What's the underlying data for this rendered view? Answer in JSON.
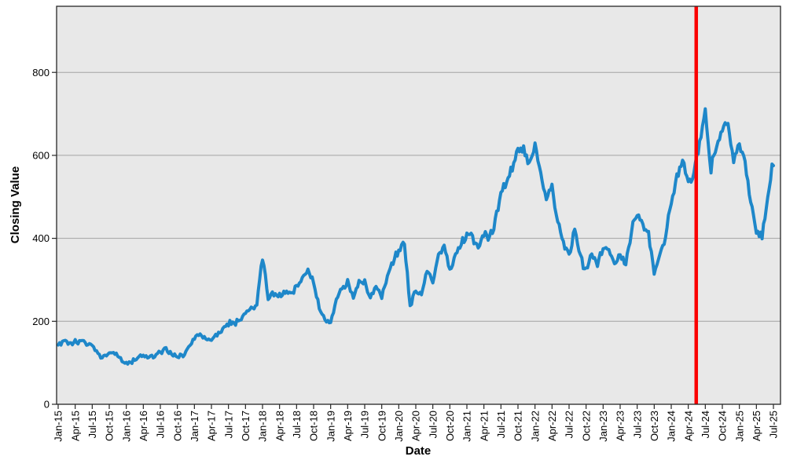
{
  "chart_data": {
    "type": "line",
    "title": "",
    "xlabel": "Date",
    "ylabel": "Closing Value",
    "x_start_label": "Jan-15",
    "x_end_label": "Jul-25",
    "x_tick_labels": [
      "Jan-15",
      "Apr-15",
      "Jul-15",
      "Oct-15",
      "Jan-16",
      "Apr-16",
      "Jul-16",
      "Oct-16",
      "Jan-17",
      "Apr-17",
      "Jul-17",
      "Oct-17",
      "Jan-18",
      "Apr-18",
      "Jul-18",
      "Oct-18",
      "Jan-19",
      "Apr-19",
      "Jul-19",
      "Oct-19",
      "Jan-20",
      "Apr-20",
      "Jul-20",
      "Oct-20",
      "Jan-21",
      "Apr-21",
      "Jul-21",
      "Oct-21",
      "Jan-22",
      "Apr-22",
      "Jul-22",
      "Oct-22",
      "Jan-23",
      "Apr-23",
      "Jul-23",
      "Oct-23",
      "Jan-24",
      "Apr-24",
      "Jul-24",
      "Oct-24",
      "Jan-25",
      "Apr-25",
      "Jul-25"
    ],
    "y_tick_labels": [
      "0",
      "200",
      "400",
      "600",
      "800"
    ],
    "y_tick_values": [
      0,
      200,
      400,
      600,
      800
    ],
    "ylim": [
      0,
      959
    ],
    "grid": "horizontal-only",
    "legend": "none",
    "series": [
      {
        "name": "Closing Value",
        "x_unit": "month index from Jan-2015 (0 = Jan-15 ... 126 = Jul-25), values estimated from daily trace",
        "monthly_values": [
          145,
          150,
          147,
          150,
          149,
          146,
          144,
          118,
          113,
          125,
          122,
          108,
          100,
          103,
          112,
          118,
          115,
          118,
          126,
          132,
          121,
          112,
          119,
          137,
          160,
          168,
          157,
          155,
          170,
          180,
          196,
          195,
          205,
          218,
          228,
          242,
          358,
          258,
          268,
          262,
          275,
          268,
          285,
          305,
          320,
          298,
          232,
          205,
          196,
          252,
          280,
          298,
          256,
          290,
          295,
          256,
          288,
          262,
          310,
          345,
          375,
          388,
          232,
          278,
          262,
          322,
          295,
          355,
          382,
          325,
          355,
          388,
          408,
          405,
          376,
          414,
          396,
          445,
          505,
          540,
          575,
          618,
          612,
          582,
          625,
          558,
          500,
          528,
          438,
          390,
          355,
          428,
          352,
          320,
          368,
          334,
          382,
          372,
          334,
          364,
          333,
          418,
          460,
          432,
          408,
          318,
          355,
          408,
          490,
          545,
          590,
          532,
          560,
          640,
          700,
          565,
          630,
          660,
          678,
          585,
          630,
          580,
          488,
          415,
          405,
          505,
          588
        ]
      }
    ],
    "annotations": [
      {
        "type": "vline",
        "x_months_from_start": 112.4,
        "between_ticks": [
          "Apr-24",
          "Jul-24"
        ],
        "color": "#fb0101"
      }
    ],
    "colors": {
      "line": "#1e87c9",
      "vline": "#fb0101",
      "plot_bg": "#e8e8e8",
      "grid": "#a3a3a3",
      "axis": "#262626",
      "text": "#000000",
      "figure_bg": "#ffffff"
    }
  }
}
